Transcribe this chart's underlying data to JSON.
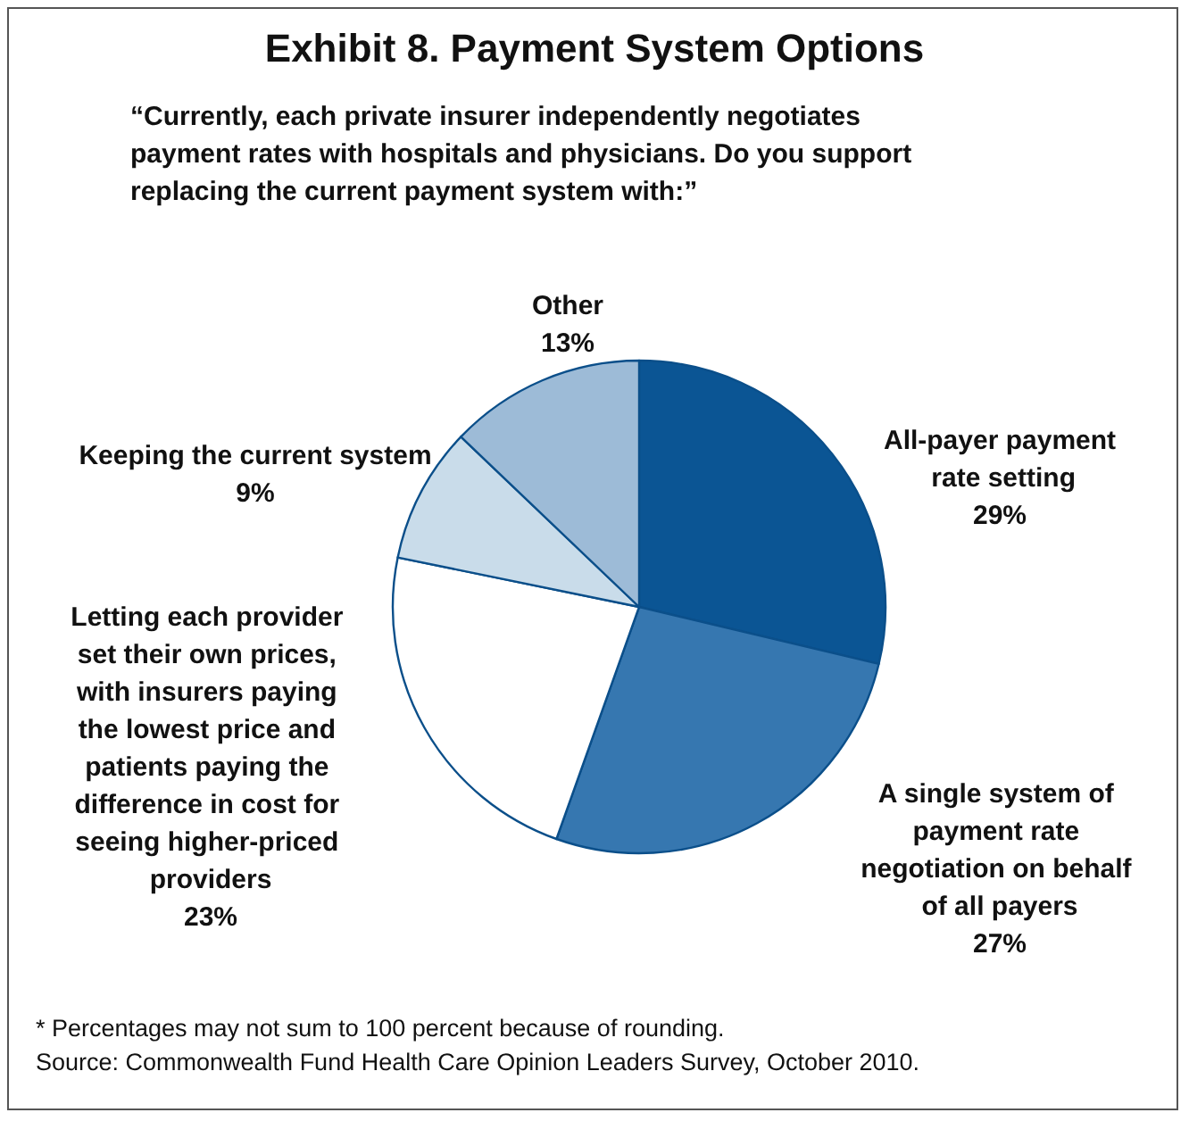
{
  "chart_data": {
    "type": "pie",
    "title": "Exhibit 8. Payment System Options",
    "subtitle": "“Currently, each private insurer independently negotiates payment rates with hospitals and physicians. Do you support replacing the current payment system with:”",
    "categories": [
      "All-payer payment rate setting",
      "A single system of payment rate negotiation on behalf of all payers",
      "Letting each provider set their own prices, with insurers paying the lowest price and patients paying the difference in cost for seeing higher-priced providers",
      "Keeping the current system",
      "Other"
    ],
    "values": [
      29,
      27,
      23,
      9,
      13
    ],
    "value_labels": [
      "29%",
      "27%",
      "23%",
      "9%",
      "13%"
    ],
    "colors": [
      "#0b5594",
      "#3677b0",
      "#ffffff",
      "#c9dcea",
      "#9dbbd7"
    ],
    "legend": false,
    "annotations": [
      "* Percentages may not sum to 100 percent because of rounding.",
      "Source: Commonwealth Fund Health Care Opinion Leaders Survey, October 2010."
    ]
  }
}
